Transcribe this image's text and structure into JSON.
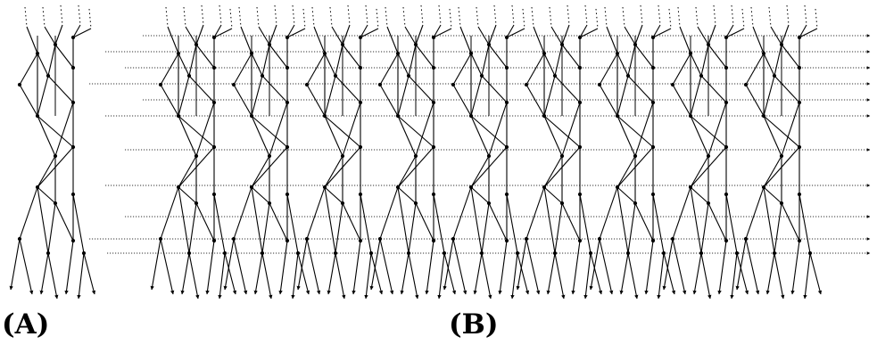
{
  "panels": [
    {
      "id": "A",
      "label": "(A)"
    },
    {
      "id": "B",
      "label": "(B)"
    }
  ],
  "colors": {
    "stroke": "#000000",
    "background": "#ffffff",
    "dotted": "#333333"
  }
}
